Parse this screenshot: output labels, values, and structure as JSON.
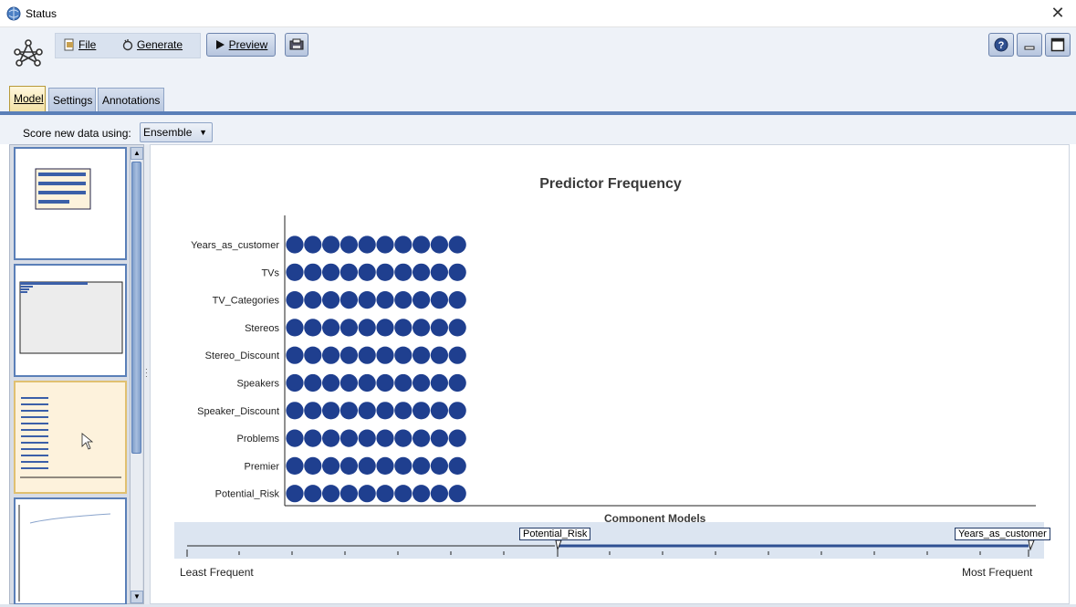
{
  "window": {
    "title": "Status",
    "close_glyph": "✕"
  },
  "toolbar": {
    "file_label": "File",
    "generate_label": "Generate",
    "preview_label": "Preview"
  },
  "tabs": [
    {
      "label": "Model",
      "active": true
    },
    {
      "label": "Settings",
      "active": false
    },
    {
      "label": "Annotations",
      "active": false
    }
  ],
  "score": {
    "label": "Score new data using:",
    "selected": "Ensemble"
  },
  "chart": {
    "title": "Predictor Frequency",
    "component_label": "Component Models",
    "least_label": "Least Frequent",
    "most_label": "Most Frequent",
    "slider_left_tag": "Potential_Risk",
    "slider_right_tag": "Years_as_customer",
    "dot_color": "#1f3f8f"
  },
  "chart_data": {
    "type": "scatter",
    "title": "Predictor Frequency",
    "xlabel": "Component Models",
    "categories": [
      "Years_as_customer",
      "TVs",
      "TV_Categories",
      "Stereos",
      "Stereo_Discount",
      "Speakers",
      "Speaker_Discount",
      "Problems",
      "Premier",
      "Potential_Risk"
    ],
    "values": [
      10,
      10,
      10,
      10,
      10,
      10,
      10,
      10,
      10,
      10
    ]
  }
}
